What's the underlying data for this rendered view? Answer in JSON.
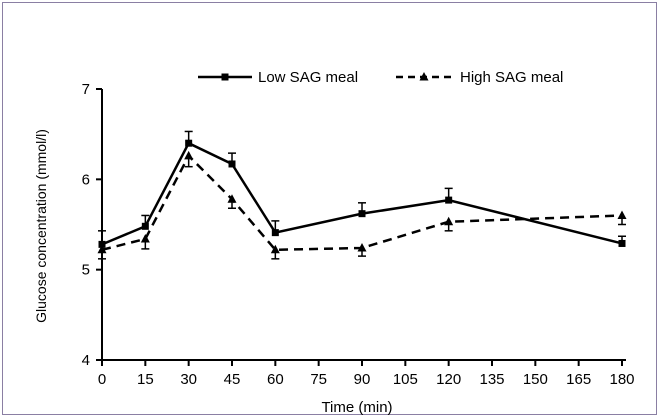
{
  "chart_data": {
    "type": "line",
    "title": "",
    "xlabel": "Time (min)",
    "ylabel": "Glucose concentration (mmol/l)",
    "x": [
      0,
      15,
      30,
      45,
      60,
      90,
      120,
      180
    ],
    "xticks": [
      0,
      15,
      30,
      45,
      60,
      75,
      90,
      105,
      120,
      135,
      150,
      165,
      180
    ],
    "yticks": [
      4,
      5,
      6,
      7
    ],
    "xlim": [
      0,
      180
    ],
    "ylim": [
      4,
      7
    ],
    "grid": false,
    "legend_position": "top",
    "series": [
      {
        "name": "Low SAG meal",
        "line_style": "solid",
        "marker": "square",
        "color": "#000000",
        "values": [
          5.28,
          5.48,
          6.4,
          6.17,
          5.41,
          5.62,
          5.77,
          5.29
        ],
        "errors": [
          0.15,
          0.12,
          0.13,
          0.12,
          0.13,
          0.12,
          0.13,
          0.08
        ]
      },
      {
        "name": "High SAG meal",
        "line_style": "dashed",
        "marker": "triangle",
        "color": "#000000",
        "values": [
          5.22,
          5.34,
          6.26,
          5.78,
          5.22,
          5.24,
          5.53,
          5.6
        ],
        "errors": [
          0.1,
          0.11,
          0.12,
          0.1,
          0.1,
          0.09,
          0.1,
          0.1
        ]
      }
    ]
  }
}
